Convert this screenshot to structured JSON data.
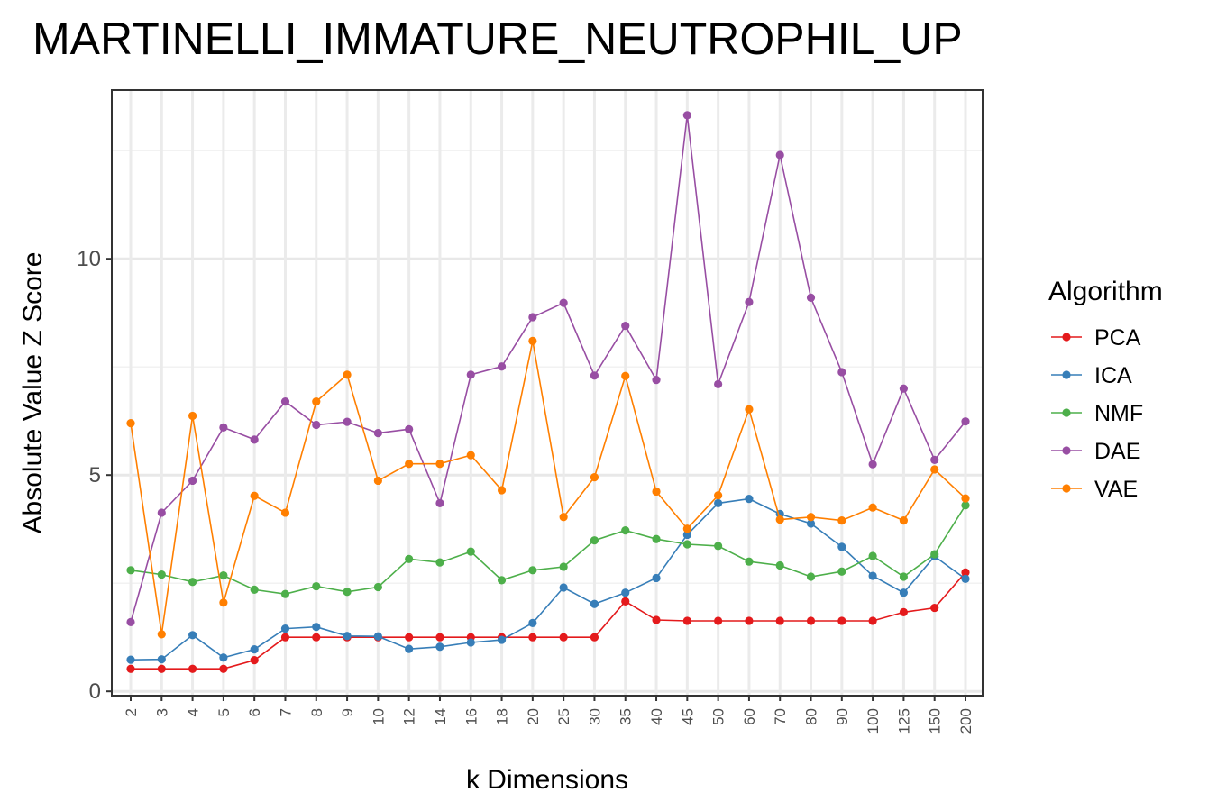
{
  "chart_data": {
    "type": "line",
    "title": "MARTINELLI_IMMATURE_NEUTROPHIL_UP",
    "xlabel": "k Dimensions",
    "ylabel": "Absolute Value Z Score",
    "categories": [
      "2",
      "3",
      "4",
      "5",
      "6",
      "7",
      "8",
      "9",
      "10",
      "12",
      "14",
      "16",
      "18",
      "20",
      "25",
      "30",
      "35",
      "40",
      "45",
      "50",
      "60",
      "70",
      "80",
      "90",
      "100",
      "125",
      "150",
      "200"
    ],
    "ylim": [
      -0.1,
      13.9
    ],
    "yticks": [
      0,
      5,
      10
    ],
    "grid": true,
    "legend_title": "Algorithm",
    "legend_position": "right",
    "series": [
      {
        "name": "PCA",
        "color": "#E41A1C",
        "values": [
          0.52,
          0.52,
          0.52,
          0.52,
          0.72,
          1.25,
          1.25,
          1.25,
          1.25,
          1.25,
          1.25,
          1.25,
          1.25,
          1.25,
          1.25,
          1.25,
          2.08,
          1.65,
          1.63,
          1.63,
          1.63,
          1.63,
          1.63,
          1.63,
          1.63,
          1.83,
          1.93,
          2.75
        ]
      },
      {
        "name": "ICA",
        "color": "#377EB8",
        "values": [
          0.73,
          0.74,
          1.3,
          0.78,
          0.97,
          1.45,
          1.49,
          1.28,
          1.27,
          0.98,
          1.03,
          1.13,
          1.19,
          1.58,
          2.4,
          2.02,
          2.28,
          2.62,
          3.62,
          4.35,
          4.45,
          4.1,
          3.88,
          3.34,
          2.67,
          2.28,
          3.12,
          2.6
        ]
      },
      {
        "name": "NMF",
        "color": "#4DAF4A",
        "values": [
          2.8,
          2.7,
          2.53,
          2.68,
          2.35,
          2.25,
          2.43,
          2.3,
          2.41,
          3.06,
          2.98,
          3.23,
          2.57,
          2.8,
          2.88,
          3.49,
          3.72,
          3.52,
          3.4,
          3.36,
          3.0,
          2.91,
          2.65,
          2.77,
          3.13,
          2.65,
          3.17,
          4.3
        ]
      },
      {
        "name": "DAE",
        "color": "#984EA3",
        "values": [
          1.6,
          4.13,
          4.87,
          6.1,
          5.82,
          6.7,
          6.16,
          6.23,
          5.97,
          6.06,
          4.35,
          7.32,
          7.51,
          8.65,
          8.98,
          7.3,
          8.45,
          7.2,
          13.32,
          7.1,
          9.0,
          12.4,
          9.1,
          7.38,
          5.25,
          7.0,
          5.35,
          6.24
        ]
      },
      {
        "name": "VAE",
        "color": "#FF7F00",
        "values": [
          6.2,
          1.32,
          6.37,
          2.05,
          4.52,
          4.13,
          6.7,
          7.32,
          4.87,
          5.26,
          5.26,
          5.46,
          4.65,
          8.1,
          4.03,
          4.95,
          7.29,
          4.62,
          3.76,
          4.53,
          6.52,
          3.97,
          4.03,
          3.95,
          4.25,
          3.95,
          5.13,
          4.46
        ]
      }
    ]
  }
}
